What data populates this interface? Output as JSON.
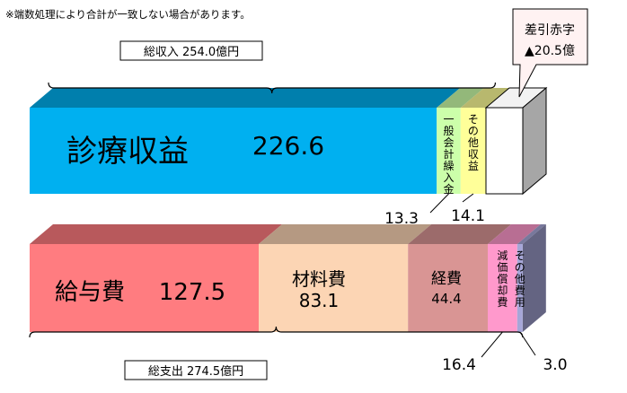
{
  "note": "※端数処理により合計が一致しない場合があります。",
  "chart_data": {
    "type": "bar",
    "orientation": "horizontal-stacked",
    "unit": "億円",
    "deficit": {
      "label": "差引赤字",
      "value_text": "▲20.5億",
      "value": -20.5
    },
    "rows": [
      {
        "id": "revenue",
        "total_label": "総収入 254.0億円",
        "total": 254.0,
        "segments": [
          {
            "id": "rev-medical",
            "name": "診療収益",
            "value": 226.6,
            "value_text": "226.6",
            "color": "#00b0f0",
            "label_pos": "inside"
          },
          {
            "id": "rev-general",
            "name": "一般会計繰入金",
            "value": 13.3,
            "value_text": "13.3",
            "color": "#ccffaa",
            "label_pos": "outside"
          },
          {
            "id": "rev-other",
            "name": "その他収益",
            "value": 14.1,
            "value_text": "14.1",
            "color": "#ffff99",
            "label_pos": "outside"
          }
        ]
      },
      {
        "id": "expense",
        "total_label": "総支出 274.5億円",
        "total": 274.5,
        "segments": [
          {
            "id": "exp-salary",
            "name": "給与費",
            "value": 127.5,
            "value_text": "127.5",
            "color": "#ff7c80",
            "label_pos": "inside"
          },
          {
            "id": "exp-material",
            "name": "材料費",
            "value": 83.1,
            "value_text": "83.1",
            "color": "#fcd5b4",
            "label_pos": "inside"
          },
          {
            "id": "exp-overhead",
            "name": "経費",
            "value": 44.4,
            "value_text": "44.4",
            "color": "#d99594",
            "label_pos": "inside"
          },
          {
            "id": "exp-depreciation",
            "name": "減価償却費",
            "value": 16.4,
            "value_text": "16.4",
            "color": "#ff99cc",
            "label_pos": "outside"
          },
          {
            "id": "exp-other",
            "name": "その他費用",
            "value": 3.0,
            "value_text": "3.0",
            "color": "#a6a6d8",
            "label_pos": "outside"
          }
        ]
      }
    ]
  }
}
